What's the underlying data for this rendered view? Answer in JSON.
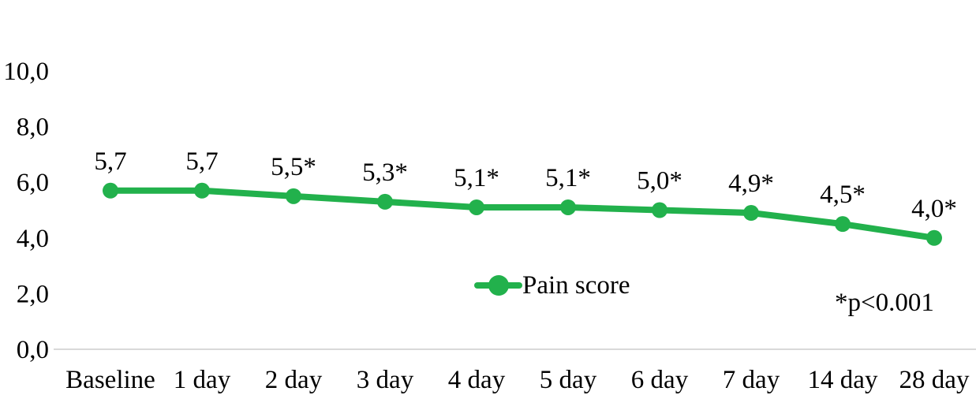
{
  "chart_data": {
    "type": "line",
    "title": "",
    "xlabel": "",
    "ylabel": "",
    "categories": [
      "Baseline",
      "1 day",
      "2 day",
      "3 day",
      "4 day",
      "5 day",
      "6 day",
      "7 day",
      "14 day",
      "28 day"
    ],
    "series": [
      {
        "name": "Pain score",
        "values": [
          5.7,
          5.7,
          5.5,
          5.3,
          5.1,
          5.1,
          5.0,
          4.9,
          4.5,
          4.0
        ]
      }
    ],
    "point_labels": [
      "5,7",
      "5,7",
      "5,5*",
      "5,3*",
      "5,1*",
      "5,1*",
      "5,0*",
      "4,9*",
      "4,5*",
      "4,0*"
    ],
    "ylim": [
      0,
      10
    ],
    "yticks": [
      0,
      2,
      4,
      6,
      8,
      10
    ],
    "ytick_labels": [
      "0,0",
      "2,0",
      "4,0",
      "6,0",
      "8,0",
      "10,0"
    ],
    "grid": false,
    "legend": {
      "label": "Pain score",
      "position": "inside-bottom-center"
    },
    "annotation": "*p<0.001",
    "colors": {
      "series": "#22b14c",
      "axis_line": "#d9d9d9",
      "text": "#000000",
      "background": "#ffffff"
    }
  }
}
